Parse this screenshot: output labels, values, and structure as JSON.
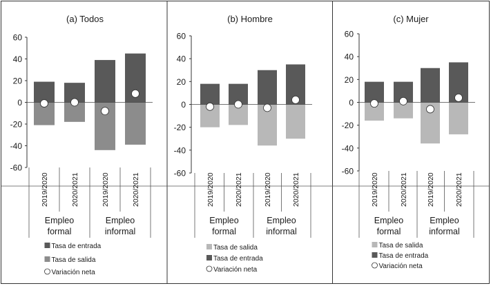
{
  "chart_data": [
    {
      "type": "bar",
      "title": "(a) Todos",
      "ylim": [
        -60,
        60
      ],
      "yticks": [
        60,
        40,
        20,
        0,
        -20,
        -40,
        -60
      ],
      "categories": [
        "2019/2020",
        "2020/2021",
        "2019/2020",
        "2020/2021"
      ],
      "groups": [
        {
          "label_line1": "Empleo",
          "label_line2": "formal"
        },
        {
          "label_line1": "Empleo",
          "label_line2": "informal"
        }
      ],
      "series": [
        {
          "name": "Tasa de entrada",
          "kind": "bar",
          "color": "#595959",
          "values": [
            19,
            18,
            39,
            45
          ]
        },
        {
          "name": "Tasa de salida",
          "kind": "bar",
          "color": "#8c8c8c",
          "values": [
            -21,
            -18,
            -44,
            -39
          ]
        },
        {
          "name": "Variación neta",
          "kind": "marker",
          "values": [
            -1,
            0,
            -8,
            8
          ]
        }
      ],
      "legend": [
        {
          "label": "Tasa de entrada",
          "swatch": "square",
          "color": "#595959"
        },
        {
          "label": "Tasa de salida",
          "swatch": "square",
          "color": "#8c8c8c"
        },
        {
          "label": "Variación neta",
          "swatch": "circle",
          "color": "#ffffff"
        }
      ]
    },
    {
      "type": "bar",
      "title": "(b) Hombre",
      "ylim": [
        -60,
        60
      ],
      "yticks": [
        60,
        40,
        20,
        0,
        -20,
        -40,
        -60
      ],
      "categories": [
        "2019/2020",
        "2020/2021",
        "2019/2020",
        "2020/2021"
      ],
      "groups": [
        {
          "label_line1": "Empleo",
          "label_line2": "formal"
        },
        {
          "label_line1": "Empleo",
          "label_line2": "informal"
        }
      ],
      "series": [
        {
          "name": "Tasa de entrada",
          "kind": "bar",
          "color": "#595959",
          "values": [
            18,
            18,
            30,
            35
          ]
        },
        {
          "name": "Tasa de salida",
          "kind": "bar",
          "color": "#b8b8b8",
          "values": [
            -20,
            -18,
            -36,
            -30
          ]
        },
        {
          "name": "Variación neta",
          "kind": "marker",
          "values": [
            -2,
            0,
            -3,
            4
          ]
        }
      ],
      "legend": [
        {
          "label": "Tasa de salida",
          "swatch": "square",
          "color": "#b8b8b8"
        },
        {
          "label": "Tasa de entrada",
          "swatch": "square",
          "color": "#595959"
        },
        {
          "label": "Variación neta",
          "swatch": "circle",
          "color": "#ffffff"
        }
      ]
    },
    {
      "type": "bar",
      "title": "(c) Mujer",
      "ylim": [
        -60,
        60
      ],
      "yticks": [
        60,
        40,
        20,
        0,
        -20,
        -40,
        -60
      ],
      "categories": [
        "2019/2020",
        "2020/2021",
        "2019/2020",
        "2020/2021"
      ],
      "groups": [
        {
          "label_line1": "Empleo",
          "label_line2": "formal"
        },
        {
          "label_line1": "Empleo",
          "label_line2": "informal"
        }
      ],
      "series": [
        {
          "name": "Tasa de entrada",
          "kind": "bar",
          "color": "#595959",
          "values": [
            18,
            18,
            30,
            35
          ]
        },
        {
          "name": "Tasa de salida",
          "kind": "bar",
          "color": "#b8b8b8",
          "values": [
            -16,
            -14,
            -36,
            -28
          ]
        },
        {
          "name": "Variación neta",
          "kind": "marker",
          "values": [
            -1,
            1,
            -6,
            4
          ]
        }
      ],
      "legend": [
        {
          "label": "Tasa de salida",
          "swatch": "square",
          "color": "#b8b8b8"
        },
        {
          "label": "Tasa de entrada",
          "swatch": "square",
          "color": "#595959"
        },
        {
          "label": "Variación neta",
          "swatch": "circle",
          "color": "#ffffff"
        }
      ]
    }
  ]
}
